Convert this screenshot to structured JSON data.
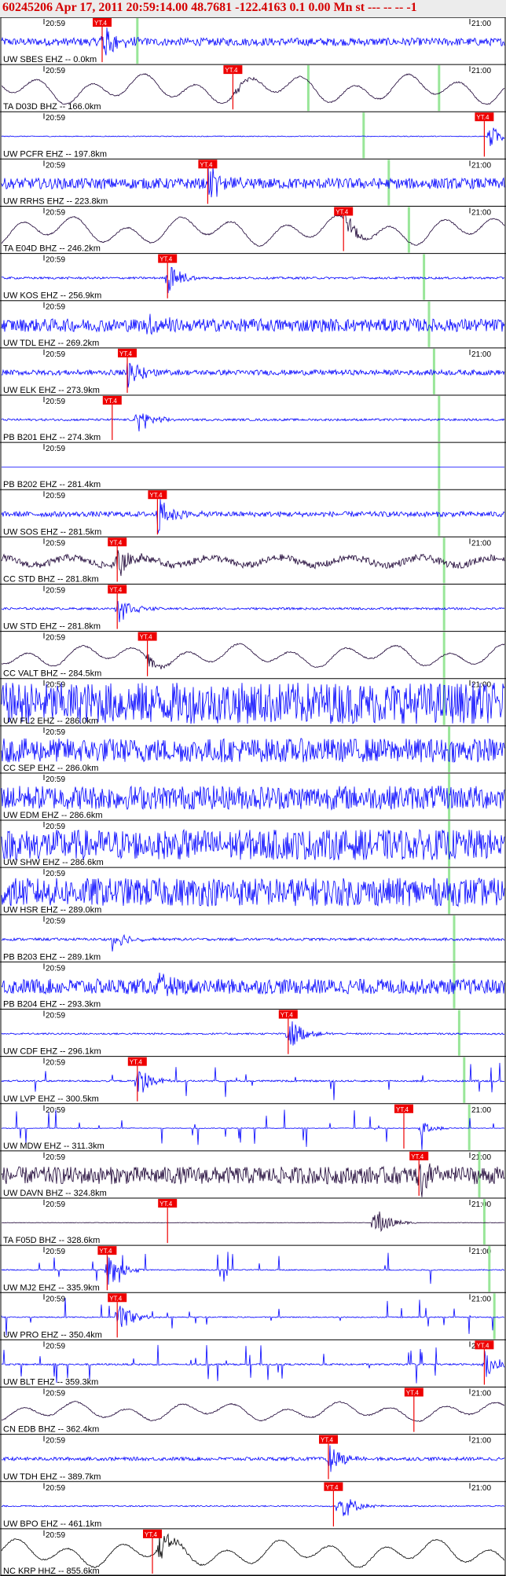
{
  "header": {
    "text": "60245206 Apr 17, 2011 20:59:14.00   48.7681 -122.4163  0.1 0.00 Mn st --- -- --  -1"
  },
  "chart_data": {
    "type": "line",
    "title": "60245206 Apr 17, 2011 20:59:14.00   48.7681 -122.4163  0.1 0.00 Mn st --- -- --  -1",
    "x_tick_labels": [
      "20:59",
      "21:00"
    ],
    "pick_label": "YT.4",
    "colors": {
      "trace_blue": "#0000ff",
      "trace_dark": "#1a0033",
      "trace_black": "#000000",
      "pick": "#ee0000",
      "arrival_marker": "#99e699",
      "frame": "#000000"
    },
    "traces": [
      {
        "label": "UW SBES EHZ -- 0.0km",
        "color": "blue",
        "style": "noise",
        "amp": 0.18,
        "event": 0.2,
        "event_amp": 1.0,
        "pick": 0.2,
        "green": 0.27,
        "right_tick": true
      },
      {
        "label": "TA D03D BHZ -- 166.0km",
        "color": "dark",
        "style": "wave",
        "amp": 0.7,
        "event": 0.46,
        "event_amp": 0.3,
        "pick": 0.46,
        "green": 0.61,
        "green2": 0.87,
        "right_tick": true
      },
      {
        "label": "UW PCFR EHZ -- 197.8km",
        "color": "blue",
        "style": "noise",
        "amp": 0.02,
        "event": 0.97,
        "event_amp": 0.6,
        "pick": 0.96,
        "green": 0.72,
        "right_tick": false
      },
      {
        "label": "UW RRHS EHZ -- 223.8km",
        "color": "blue",
        "style": "noise",
        "amp": 0.25,
        "event": 0.41,
        "event_amp": 1.0,
        "pick": 0.41,
        "green": 0.77,
        "right_tick": true
      },
      {
        "label": "TA E04D BHZ -- 246.2km",
        "color": "dark",
        "style": "wave",
        "amp": 0.7,
        "event": 0.68,
        "event_amp": 0.6,
        "pick": 0.68,
        "green": 0.81,
        "right_tick": true
      },
      {
        "label": "UW KOS EHZ -- 256.9km",
        "color": "blue",
        "style": "noise",
        "amp": 0.05,
        "event": 0.33,
        "event_amp": 0.8,
        "pick": 0.33,
        "green": 0.84,
        "right_tick": false
      },
      {
        "label": "UW TDL EHZ -- 269.2km",
        "color": "blue",
        "style": "noise",
        "amp": 0.3,
        "event": 0.29,
        "event_amp": 0.6,
        "pick": null,
        "green": 0.85,
        "right_tick": false
      },
      {
        "label": "UW ELK EHZ -- 273.9km",
        "color": "blue",
        "style": "noise",
        "amp": 0.12,
        "event": 0.25,
        "event_amp": 0.9,
        "pick": 0.25,
        "green": 0.86,
        "right_tick": true
      },
      {
        "label": "PB B201 EHZ -- 274.3km",
        "color": "blue",
        "style": "noise",
        "amp": 0.05,
        "event": 0.27,
        "event_amp": 0.7,
        "pick": 0.22,
        "green": 0.87,
        "right_tick": false
      },
      {
        "label": "PB B202 EHZ -- 281.4km",
        "color": "blue",
        "style": "flat",
        "amp": 0.0,
        "event": null,
        "event_amp": 0,
        "pick": null,
        "green": 0.87,
        "right_tick": false
      },
      {
        "label": "UW SOS EHZ -- 281.5km",
        "color": "blue",
        "style": "noise",
        "amp": 0.12,
        "event": 0.31,
        "event_amp": 0.9,
        "pick": 0.31,
        "green": 0.87,
        "right_tick": false
      },
      {
        "label": "CC STD BHZ -- 281.8km",
        "color": "dark",
        "style": "wavy",
        "amp": 0.35,
        "event": 0.23,
        "event_amp": 0.8,
        "pick": 0.23,
        "green": 0.88,
        "right_tick": true
      },
      {
        "label": "UW STD EHZ -- 281.8km",
        "color": "blue",
        "style": "noise",
        "amp": 0.05,
        "event": 0.23,
        "event_amp": 0.8,
        "pick": 0.23,
        "green": 0.88,
        "right_tick": false
      },
      {
        "label": "CC VALT BHZ -- 284.5km",
        "color": "dark",
        "style": "wave",
        "amp": 0.55,
        "event": 0.29,
        "event_amp": 0.4,
        "pick": 0.29,
        "green": 0.88,
        "right_tick": false
      },
      {
        "label": "UW FL2 EHZ -- 286.0km",
        "color": "blue",
        "style": "heavy",
        "amp": 0.95,
        "event": null,
        "event_amp": 0,
        "pick": null,
        "green": 0.88,
        "right_tick": true
      },
      {
        "label": "CC SEP EHZ -- 286.0km",
        "color": "blue",
        "style": "noise",
        "amp": 0.55,
        "event": null,
        "event_amp": 0,
        "pick": null,
        "green": 0.89,
        "right_tick": false
      },
      {
        "label": "UW EDM EHZ -- 286.6km",
        "color": "blue",
        "style": "noise",
        "amp": 0.55,
        "event": null,
        "event_amp": 0,
        "pick": null,
        "green": 0.89,
        "right_tick": false
      },
      {
        "label": "UW SHW EHZ -- 286.6km",
        "color": "blue",
        "style": "noise",
        "amp": 0.7,
        "event": 0.29,
        "event_amp": 0.3,
        "pick": null,
        "green": 0.89,
        "right_tick": false
      },
      {
        "label": "UW HSR EHZ -- 289.0km",
        "color": "blue",
        "style": "noise",
        "amp": 0.65,
        "event": null,
        "event_amp": 0,
        "pick": null,
        "green": 0.89,
        "right_tick": false
      },
      {
        "label": "PB B203 EHZ -- 289.1km",
        "color": "blue",
        "style": "noise",
        "amp": 0.06,
        "event": 0.22,
        "event_amp": 0.6,
        "pick": null,
        "green": 0.9,
        "right_tick": false
      },
      {
        "label": "PB B204 EHZ -- 293.3km",
        "color": "blue",
        "style": "noise",
        "amp": 0.35,
        "event": 0.31,
        "event_amp": 0.5,
        "pick": null,
        "green": 0.9,
        "right_tick": false
      },
      {
        "label": "UW CDF EHZ -- 296.1km",
        "color": "blue",
        "style": "noise",
        "amp": 0.04,
        "event": 0.57,
        "event_amp": 0.9,
        "pick": 0.57,
        "green": 0.91,
        "right_tick": false
      },
      {
        "label": "UW LVP EHZ -- 300.5km",
        "color": "blue",
        "style": "spiky",
        "amp": 0.08,
        "event": 0.27,
        "event_amp": 0.8,
        "pick": 0.27,
        "green": 0.92,
        "right_tick": false
      },
      {
        "label": "UW MDW EHZ -- 311.3km",
        "color": "blue",
        "style": "spiky",
        "amp": 0.03,
        "event": 0.83,
        "event_amp": 0.4,
        "pick": 0.8,
        "green": 0.93,
        "right_tick": true
      },
      {
        "label": "UW DAVN BHZ -- 324.8km",
        "color": "dark",
        "style": "noise",
        "amp": 0.4,
        "event": 0.83,
        "event_amp": 1.0,
        "pick": 0.83,
        "green": 0.95,
        "right_tick": true
      },
      {
        "label": "TA F05D BHZ -- 328.6km",
        "color": "dark",
        "style": "flat",
        "amp": 0.02,
        "event": 0.74,
        "event_amp": 0.9,
        "pick": 0.33,
        "green": 0.96,
        "right_tick": true
      },
      {
        "label": "UW MJ2 EHZ -- 335.9km",
        "color": "blue",
        "style": "spiky",
        "amp": 0.05,
        "event": 0.21,
        "event_amp": 0.9,
        "pick": 0.21,
        "green": 0.97,
        "right_tick": true
      },
      {
        "label": "UW PRO EHZ -- 350.4km",
        "color": "blue",
        "style": "spiky",
        "amp": 0.05,
        "event": 0.23,
        "event_amp": 0.9,
        "pick": 0.23,
        "green": 0.98,
        "right_tick": true
      },
      {
        "label": "UW BLT EHZ -- 359.3km",
        "color": "blue",
        "style": "spiky",
        "amp": 0.08,
        "event": 0.96,
        "event_amp": 0.7,
        "pick": 0.96,
        "green": null,
        "right_tick": true
      },
      {
        "label": "CN EDB BHZ -- 362.4km",
        "color": "dark",
        "style": "wave",
        "amp": 0.45,
        "event": null,
        "event_amp": 0,
        "pick": 0.82,
        "green": null,
        "right_tick": true
      },
      {
        "label": "UW TDH EHZ -- 389.7km",
        "color": "blue",
        "style": "noise",
        "amp": 0.08,
        "event": 0.65,
        "event_amp": 0.8,
        "pick": 0.65,
        "green": null,
        "right_tick": true
      },
      {
        "label": "UW BPO EHZ -- 461.1km",
        "color": "blue",
        "style": "noise",
        "amp": 0.03,
        "event": 0.67,
        "event_amp": 0.9,
        "pick": 0.66,
        "green": null,
        "right_tick": true
      },
      {
        "label": "NC KRP HHZ -- 855.6km",
        "color": "black",
        "style": "wave",
        "amp": 0.65,
        "event": 0.31,
        "event_amp": 0.8,
        "pick": 0.3,
        "green": null,
        "right_tick": false
      }
    ]
  }
}
